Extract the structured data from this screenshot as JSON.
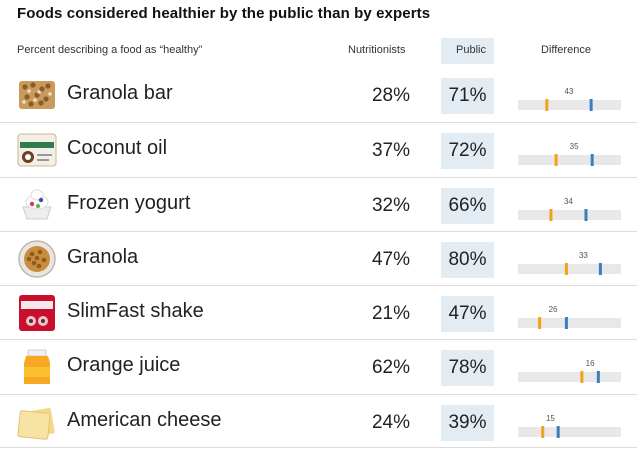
{
  "title": "Foods considered healthier by the public than by experts",
  "header": {
    "description": "Percent describing a food as “healthy”",
    "nutritionists": "Nutritionists",
    "public": "Public",
    "difference": "Difference"
  },
  "colors": {
    "nutritionist_marker": "#f0a31a",
    "public_marker": "#3c7dc0",
    "track": "#e8e8e8",
    "public_bg": "#e3ecf3"
  },
  "chart_data": {
    "type": "table",
    "title": "Foods considered healthier by the public than by experts",
    "columns": [
      "Percent describing a food as “healthy”",
      "Nutritionists",
      "Public",
      "Difference"
    ],
    "scale": [
      0,
      100
    ],
    "rows": [
      {
        "food": "Granola bar",
        "icon": "granola-bar-icon",
        "nutritionists": "28%",
        "public": "71%",
        "n": 28,
        "p": 71,
        "difference": 43
      },
      {
        "food": "Coconut oil",
        "icon": "coconut-oil-icon",
        "nutritionists": "37%",
        "public": "72%",
        "n": 37,
        "p": 72,
        "difference": 35
      },
      {
        "food": "Frozen yogurt",
        "icon": "frozen-yogurt-icon",
        "nutritionists": "32%",
        "public": "66%",
        "n": 32,
        "p": 66,
        "difference": 34
      },
      {
        "food": "Granola",
        "icon": "granola-icon",
        "nutritionists": "47%",
        "public": "80%",
        "n": 47,
        "p": 80,
        "difference": 33
      },
      {
        "food": "SlimFast shake",
        "icon": "slimfast-shake-icon",
        "nutritionists": "21%",
        "public": "47%",
        "n": 21,
        "p": 47,
        "difference": 26
      },
      {
        "food": "Orange juice",
        "icon": "orange-juice-icon",
        "nutritionists": "62%",
        "public": "78%",
        "n": 62,
        "p": 78,
        "difference": 16
      },
      {
        "food": "American cheese",
        "icon": "american-cheese-icon",
        "nutritionists": "24%",
        "public": "39%",
        "n": 24,
        "p": 39,
        "difference": 15
      }
    ]
  }
}
